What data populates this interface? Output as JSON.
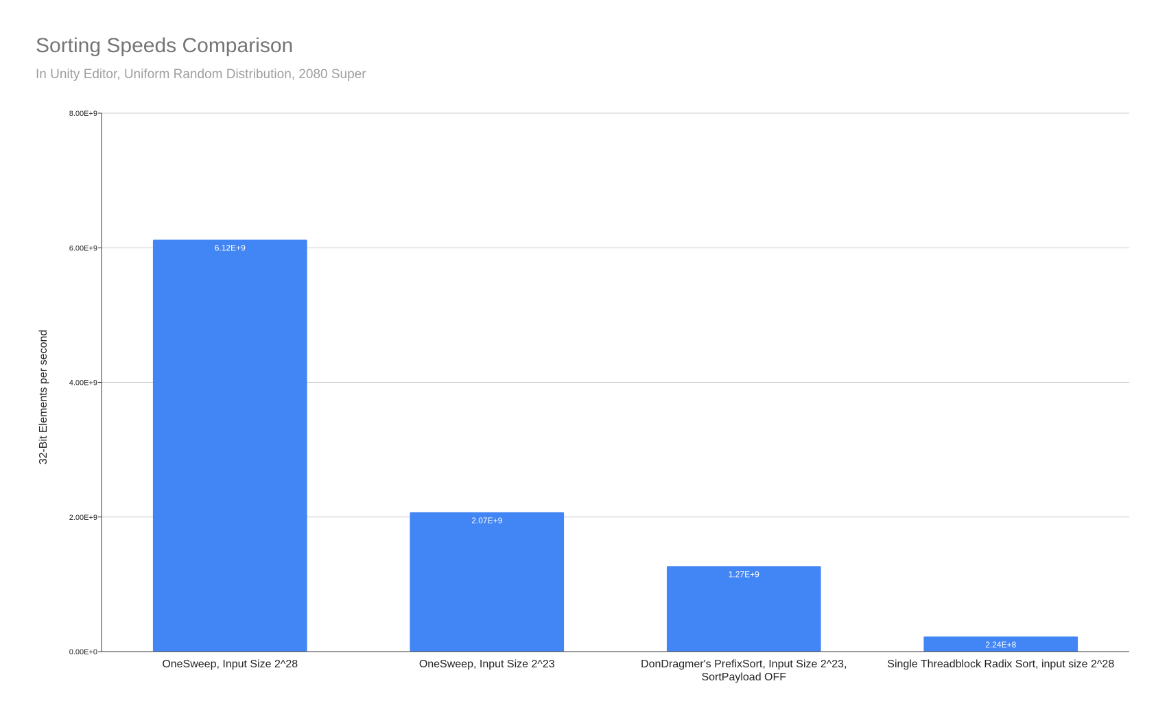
{
  "chart_data": {
    "type": "bar",
    "title": "Sorting Speeds Comparison",
    "subtitle": "In Unity Editor, Uniform Random Distribution, 2080 Super",
    "xlabel": "",
    "ylabel": "32-Bit Elements per second",
    "ylim": [
      0,
      8000000000
    ],
    "yticks": [
      {
        "value": 0,
        "label": "0.00E+0"
      },
      {
        "value": 2000000000,
        "label": "2.00E+9"
      },
      {
        "value": 4000000000,
        "label": "4.00E+9"
      },
      {
        "value": 6000000000,
        "label": "6.00E+9"
      },
      {
        "value": 8000000000,
        "label": "8.00E+9"
      }
    ],
    "grid": true,
    "legend": "none",
    "bar_color": "#4285f4",
    "categories": [
      [
        "OneSweep, Input Size 2^28"
      ],
      [
        "OneSweep, Input Size 2^23"
      ],
      [
        "DonDragmer's PrefixSort, Input Size 2^23,",
        "SortPayload OFF"
      ],
      [
        "Single Threadblock Radix Sort, input size 2^28"
      ]
    ],
    "values": [
      6120000000,
      2070000000,
      1270000000,
      224000000
    ],
    "data_labels": [
      "6.12E+9",
      "2.07E+9",
      "1.27E+9",
      "2.24E+8"
    ]
  }
}
